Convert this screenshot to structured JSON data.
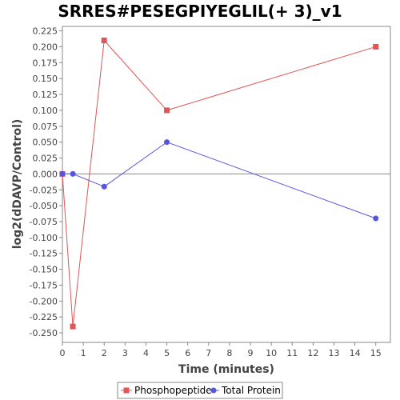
{
  "chart_data": {
    "type": "line",
    "title": "SRRES#PESEGPIYEGLIL(+ 3)_v1",
    "xlabel": "Time (minutes)",
    "ylabel": "log2(dDAVP/Control)",
    "xlim": [
      0,
      15.7
    ],
    "ylim": [
      -0.265,
      0.232
    ],
    "x_ticks": [
      "0",
      "1",
      "2",
      "3",
      "4",
      "5",
      "6",
      "7",
      "8",
      "9",
      "10",
      "11",
      "12",
      "13",
      "14",
      "15"
    ],
    "y_ticks": [
      "0.225",
      "0.200",
      "0.175",
      "0.150",
      "0.125",
      "0.100",
      "0.075",
      "0.050",
      "0.025",
      "0.000",
      "-0.025",
      "-0.050",
      "-0.075",
      "-0.100",
      "-0.125",
      "-0.150",
      "-0.175",
      "-0.200",
      "-0.225",
      "-0.250"
    ],
    "grid": false,
    "legend_position": "bottom",
    "series": [
      {
        "name": "Phosphopeptide",
        "color": "#e05555",
        "marker": "square",
        "x": [
          0,
          0.5,
          2,
          5,
          15
        ],
        "y": [
          0.0,
          -0.24,
          0.21,
          0.1,
          0.2
        ]
      },
      {
        "name": "Total Protein",
        "color": "#5555e0",
        "marker": "circle",
        "x": [
          0,
          0.5,
          2,
          5,
          15
        ],
        "y": [
          0.0,
          0.0,
          -0.02,
          0.05,
          -0.07
        ]
      }
    ]
  }
}
